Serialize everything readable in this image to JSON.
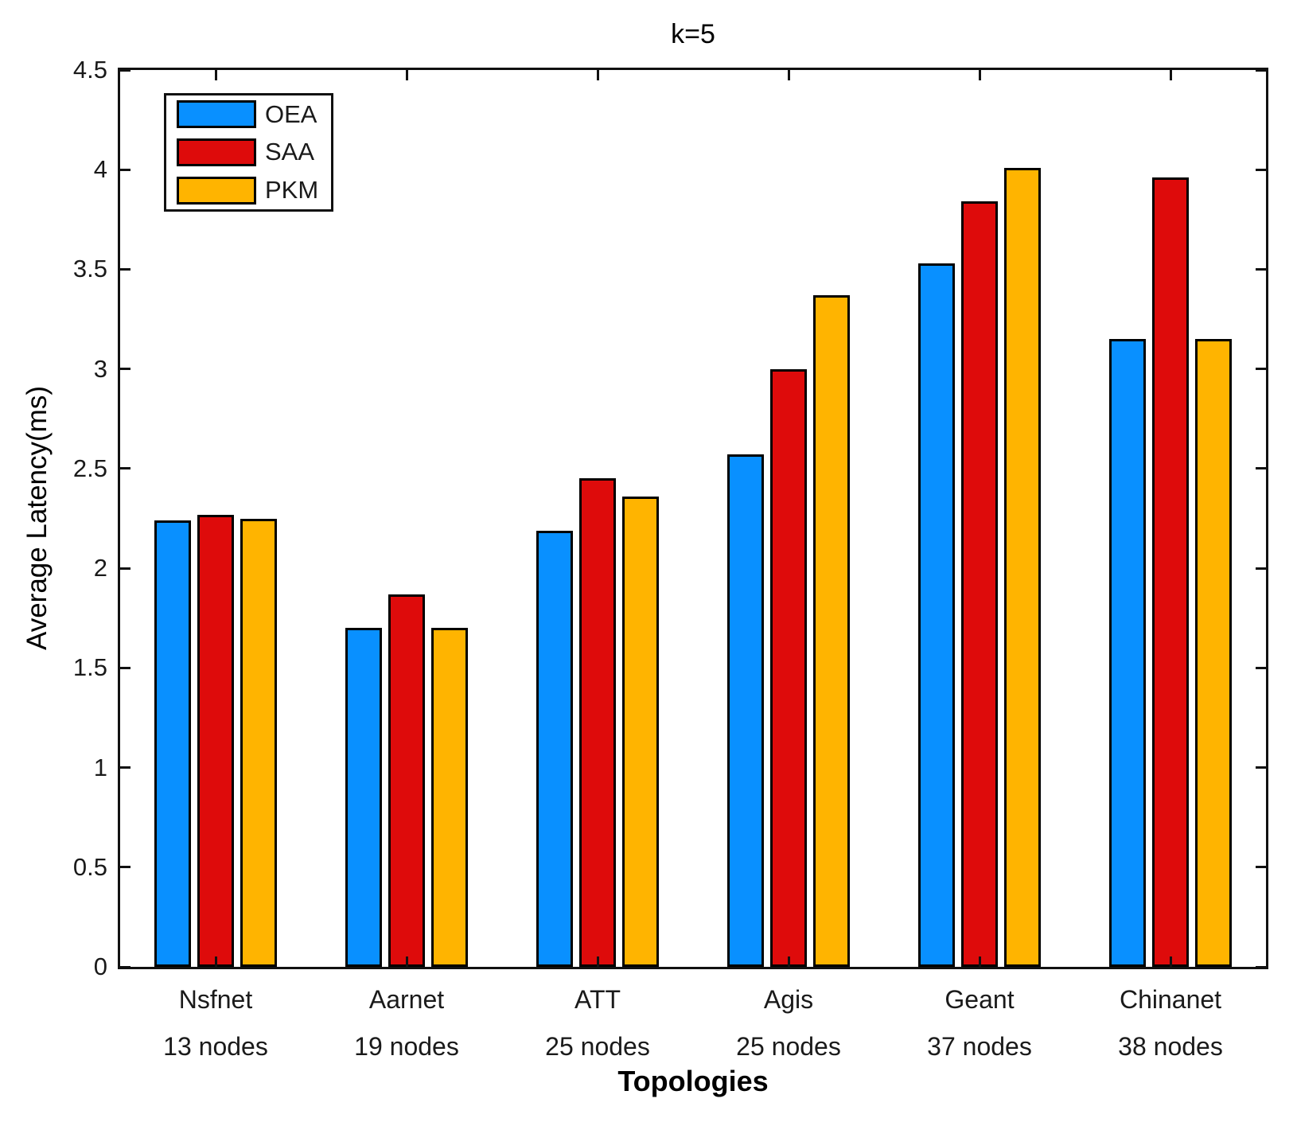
{
  "chart_data": {
    "type": "bar",
    "title": "k=5",
    "xlabel": "Topologies",
    "ylabel": "Average Latency(ms)",
    "ylim": [
      0,
      4.5
    ],
    "yticks": [
      "0",
      "0.5",
      "1",
      "1.5",
      "2",
      "2.5",
      "3",
      "3.5",
      "4",
      "4.5"
    ],
    "grid": false,
    "legend_position": "top-left-inside",
    "legend_entries": [
      "OEA",
      "SAA",
      "PKM"
    ],
    "categories": [
      "Nsfnet",
      "Aarnet",
      "ATT",
      "Agis",
      "Geant",
      "Chinanet"
    ],
    "category_sublabels": [
      "13 nodes",
      "19 nodes",
      "25 nodes",
      "25 nodes",
      "37 nodes",
      "38 nodes"
    ],
    "series": [
      {
        "name": "OEA",
        "color": "#0990FF",
        "values": [
          2.24,
          1.7,
          2.19,
          2.57,
          3.53,
          3.15
        ]
      },
      {
        "name": "SAA",
        "color": "#DE0B0B",
        "values": [
          2.27,
          1.87,
          2.45,
          3.0,
          3.84,
          3.96
        ]
      },
      {
        "name": "PKM",
        "color": "#FFB400",
        "values": [
          2.25,
          1.7,
          2.36,
          3.37,
          4.01,
          3.15
        ]
      }
    ],
    "axis_color": "#111111",
    "edge_color": "#000000"
  }
}
